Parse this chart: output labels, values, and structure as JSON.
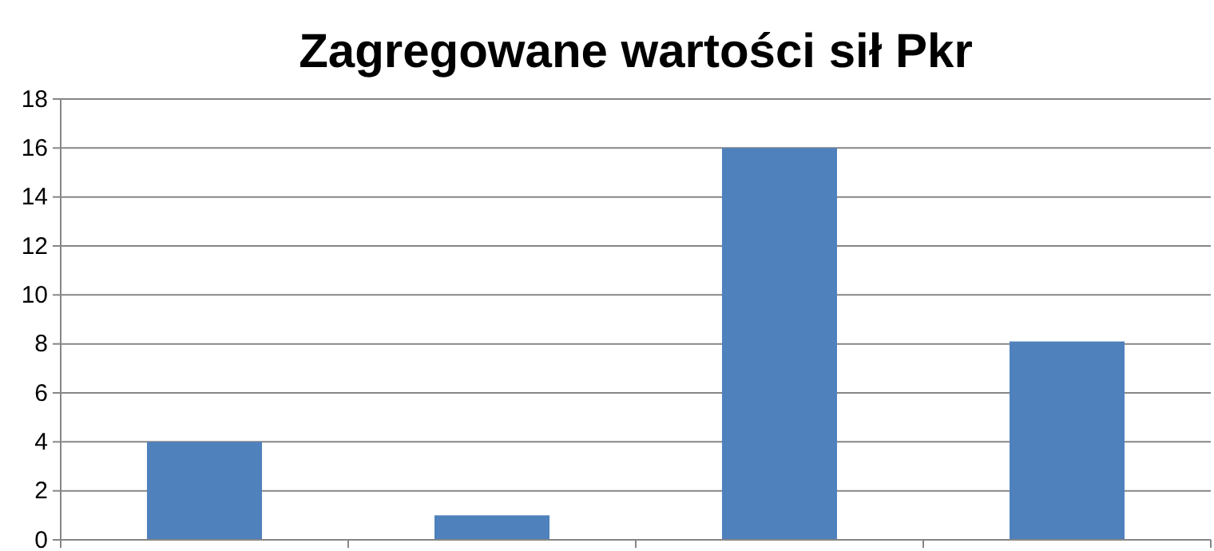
{
  "chart_data": {
    "type": "bar",
    "title": "Zagregowane wartości sił Pkr",
    "categories": [
      null,
      null,
      null,
      null
    ],
    "values": [
      4,
      1,
      16,
      8.1
    ],
    "color": "#4f81bd",
    "ylim": [
      0,
      18
    ],
    "yticks": [
      0,
      2,
      4,
      6,
      8,
      10,
      12,
      14,
      16,
      18
    ],
    "grid": "y"
  }
}
